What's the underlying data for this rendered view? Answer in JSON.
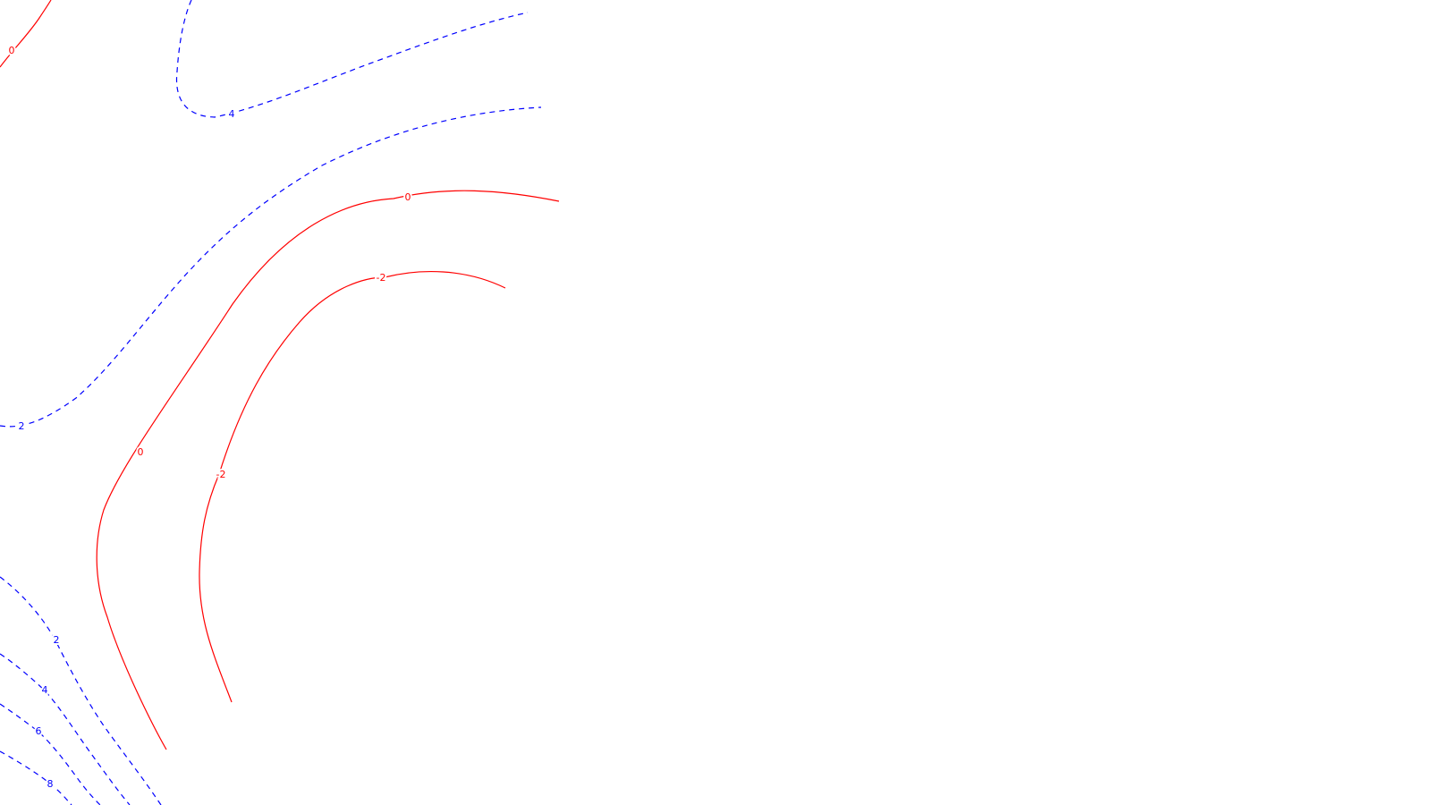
{
  "chart_data": {
    "type": "contour",
    "title": "",
    "xlabel": "",
    "ylabel": "",
    "colors": {
      "nonpositive": "#ff0000",
      "positive": "#0000ff",
      "background": "#ffffff"
    },
    "line_styles": {
      "nonpositive": "solid",
      "positive": "dashed"
    },
    "levels": [
      {
        "id": "zero-top-left",
        "value": 0,
        "label": "0"
      },
      {
        "id": "zero-main",
        "value": 0,
        "label": "0"
      },
      {
        "id": "minus-two",
        "value": -2,
        "label": "-2"
      },
      {
        "id": "four-top",
        "value": 4,
        "label": "4"
      },
      {
        "id": "two-upper",
        "value": 2,
        "label": "2"
      },
      {
        "id": "two-lower",
        "value": 2,
        "label": "2"
      },
      {
        "id": "four-lower",
        "value": 4,
        "label": "4"
      },
      {
        "id": "six-lower",
        "value": 6,
        "label": "6"
      },
      {
        "id": "eight-lower",
        "value": 8,
        "label": "8"
      }
    ]
  }
}
